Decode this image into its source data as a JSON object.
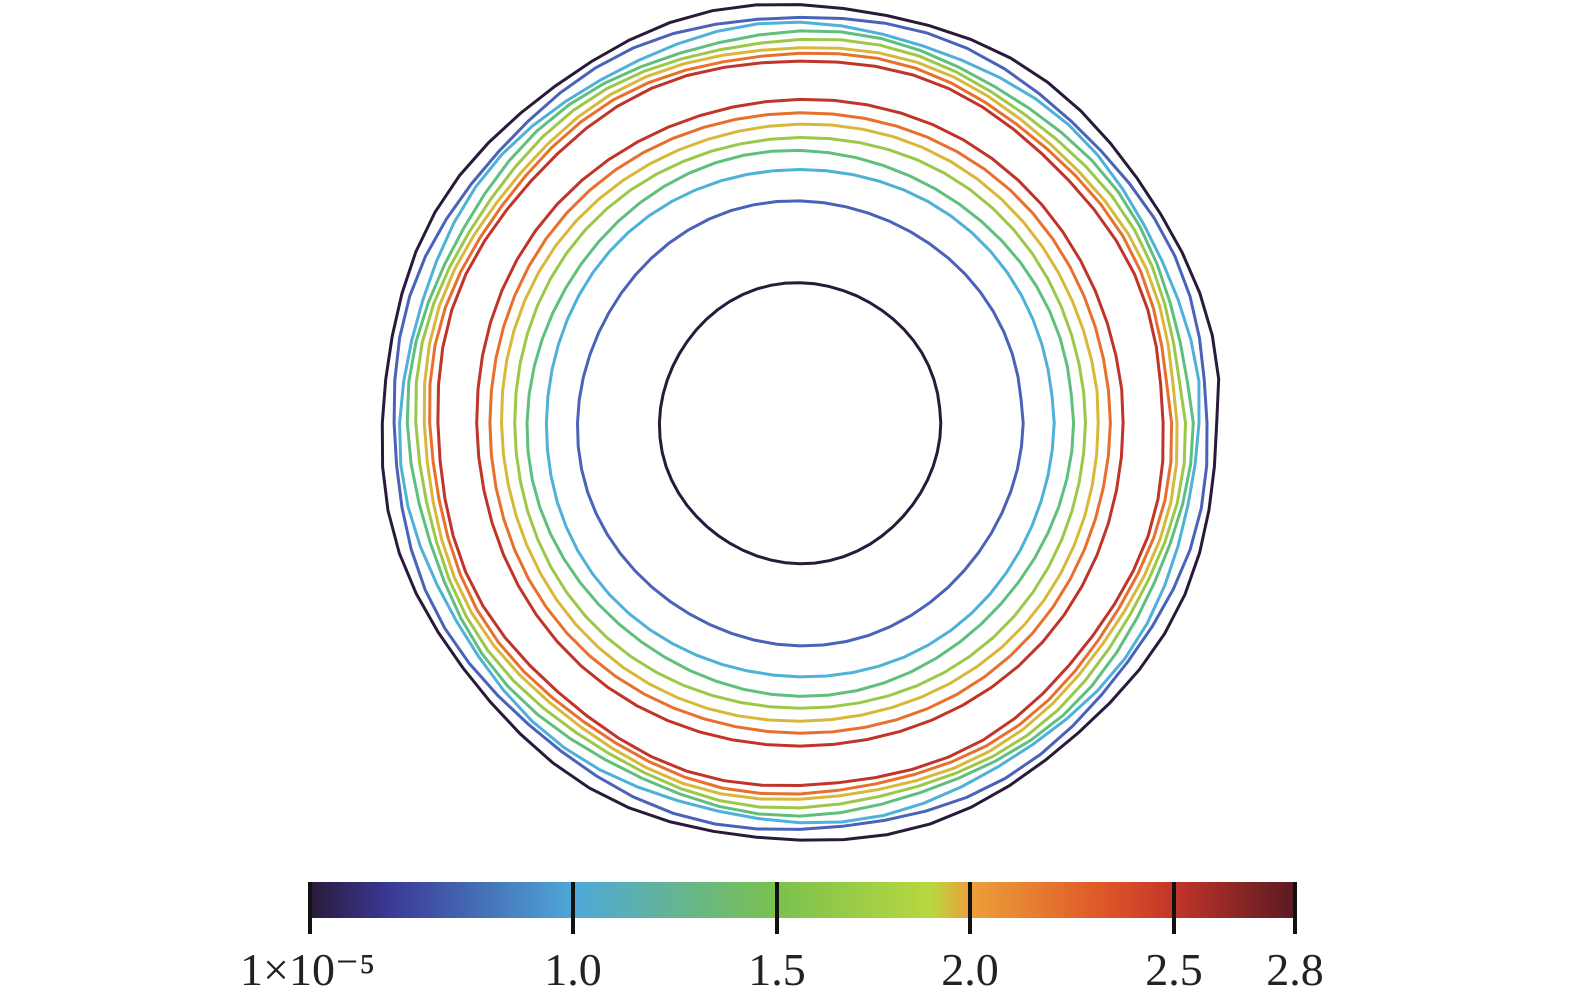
{
  "chart_data": {
    "type": "contour",
    "title": "",
    "xlabel": "",
    "ylabel": "",
    "colorbar": {
      "range": [
        1e-05,
        2.8
      ],
      "ticks": [
        {
          "value": 1e-05,
          "label": "1×10⁻⁵"
        },
        {
          "value": 1.0,
          "label": "1.0"
        },
        {
          "value": 1.5,
          "label": "1.5"
        },
        {
          "value": 2.0,
          "label": "2.0"
        },
        {
          "value": 2.5,
          "label": "2.5"
        },
        {
          "value": 2.8,
          "label": "2.8"
        }
      ],
      "placement": "bottom",
      "colormap": [
        {
          "t": 0.0,
          "color": "#2a1a3a"
        },
        {
          "t": 0.08,
          "color": "#3b3896"
        },
        {
          "t": 0.27,
          "color": "#4fa9d8"
        },
        {
          "t": 0.47,
          "color": "#79c04f"
        },
        {
          "t": 0.63,
          "color": "#b8d840"
        },
        {
          "t": 0.67,
          "color": "#eba03a"
        },
        {
          "t": 0.8,
          "color": "#e05a28"
        },
        {
          "t": 0.88,
          "color": "#c0342a"
        },
        {
          "t": 1.0,
          "color": "#5a1a22"
        }
      ]
    },
    "contours": {
      "outer_band": [
        {
          "level": 0.1,
          "color": "#2a1a3a"
        },
        {
          "level": 0.7,
          "color": "#4a62b8"
        },
        {
          "level": 1.0,
          "color": "#4fb0d8"
        },
        {
          "level": 1.4,
          "color": "#5fbf7c"
        },
        {
          "level": 1.7,
          "color": "#9cc84a"
        },
        {
          "level": 1.9,
          "color": "#d8b83a"
        },
        {
          "level": 2.2,
          "color": "#e8702e"
        },
        {
          "level": 2.5,
          "color": "#c0342a"
        }
      ],
      "inner_band": [
        {
          "level": 2.5,
          "color": "#c0342a"
        },
        {
          "level": 2.2,
          "color": "#e8702e"
        },
        {
          "level": 1.9,
          "color": "#d8b83a"
        },
        {
          "level": 1.7,
          "color": "#9cc84a"
        },
        {
          "level": 1.4,
          "color": "#5fbf7c"
        },
        {
          "level": 1.0,
          "color": "#4fb0d8"
        },
        {
          "level": 0.7,
          "color": "#4a62b8"
        },
        {
          "level": 0.1,
          "color": "#2a1a3a"
        }
      ]
    }
  }
}
